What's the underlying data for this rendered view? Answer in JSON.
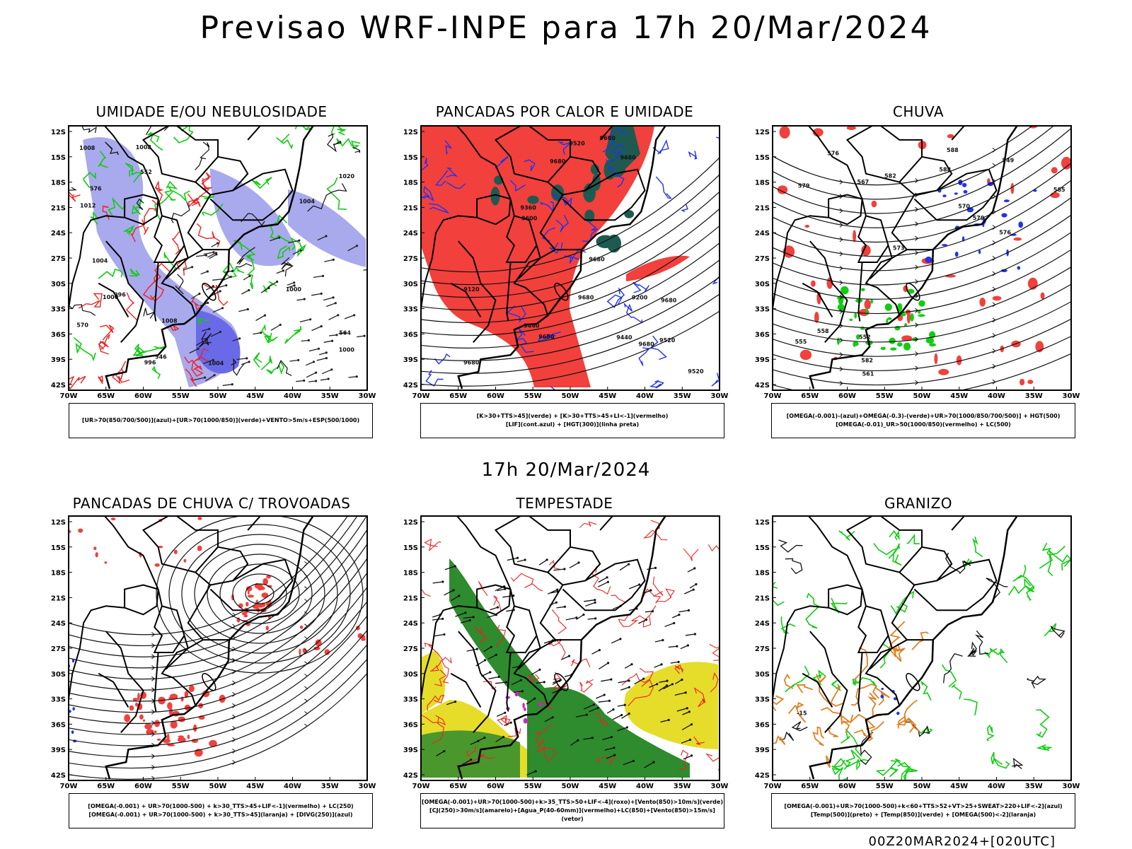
{
  "title": "Previsao WRF-INPE  para 17h 20/Mar/2024",
  "mid_date": "17h 20/Mar/2024",
  "footer": "00Z20MAR2024+[020UTC]",
  "lat_labels": [
    "12S",
    "15S",
    "18S",
    "21S",
    "24S",
    "27S",
    "30S",
    "33S",
    "36S",
    "39S",
    "42S"
  ],
  "lon_labels": [
    "70W",
    "65W",
    "60W",
    "55W",
    "50W",
    "45W",
    "40W",
    "35W",
    "30W"
  ],
  "colors": {
    "blue_fill": "#a9a9ee",
    "blue_line": "#2233ee",
    "green_line": "#11cc11",
    "red_fill": "#f2403c",
    "red_line": "#ee2222",
    "dark_teal": "#1f5a50",
    "yellow_fill": "#e6dc2a",
    "green_fill": "#2e8b2e",
    "orange_line": "#e08020",
    "magenta": "#cc22cc"
  },
  "panels": [
    {
      "title": "UMIDADE E/OU NEBULOSIDADE",
      "legend": [
        "[UR>70(850/700/500)](azul)+[UR>70(1000/850)](verde)+VENTO>5m/s+ESP(500/1000)"
      ],
      "contour_labels": [
        "1004",
        "1004",
        "1008",
        "1008",
        "1012",
        "1000",
        "996",
        "1000",
        "1008",
        "1020",
        "1004",
        "996",
        "1000",
        "552",
        "576",
        "570",
        "564",
        "546"
      ]
    },
    {
      "title": "PANCADAS POR CALOR E UMIDADE",
      "legend": [
        "[K>30+TTS>45](verde) + [K>30+TTS>45+LI<-1](vermelho)",
        "[LIF](cont.azul) + [HGT(300)](linha preta)"
      ],
      "contour_labels": [
        "9680",
        "9680",
        "9680",
        "9680",
        "9680",
        "9680",
        "9520",
        "9680",
        "9680",
        "9440",
        "9520",
        "9600",
        "9680",
        "9520",
        "9440",
        "9360",
        "9200",
        "9120"
      ]
    },
    {
      "title": "CHUVA",
      "legend": [
        "[OMEGA(-0.001)-(azul)+OMEGA(-0.3)-(verde)+UR>70(1000/850/700/500)] + HGT(500)",
        "[OMEGA(-0.01)_UR>50(1000/850)(vermelho) + LC(500)"
      ],
      "contour_labels": [
        "588",
        "588",
        "585",
        "582",
        "582",
        "579",
        "576",
        "573",
        "570",
        "567",
        "561",
        "558",
        "555",
        "552",
        "549",
        "576",
        "579"
      ]
    },
    {
      "title": "PANCADAS DE CHUVA C/ TROVOADAS",
      "legend": [
        "[OMEGA(-0.001) + UR>70(1000-500) + k>30_TTS>45+LIF<-1](vermelho) + LC(250)",
        "[OMEGA(-0.001) + UR>70(1000-500) + k>30_TTS>45](laranja) + [DIVG(250)](azul)"
      ]
    },
    {
      "title": "TEMPESTADE",
      "legend": [
        "[OMEGA(-0.001)+UR>70(1000-500)+k>35_TTS>50+LIF<-4](roxo)+[Vento(850)>10m/s](verde)",
        "[CJ(250)>30m/s](amarelo)+[Agua_P(40-60mm)](vermelho)+LC(850)+[Vento(850)>15m/s](vetor)"
      ]
    },
    {
      "title": "GRANIZO",
      "legend": [
        "[OMEGA(-0.001)+UR>70(1000-500)+k<60+TTS>52+VT>25+SWEAT>220+LIF<-2](azul)",
        "[Temp(500)](preto) + [Temp(850)](verde) + [OMEGA(500)<-2](laranja)"
      ],
      "contour_labels": [
        "-15"
      ]
    }
  ]
}
